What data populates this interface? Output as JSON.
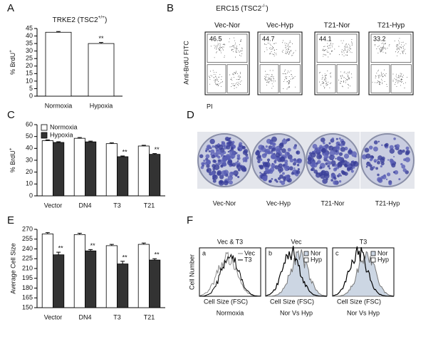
{
  "panel_letters": [
    "A",
    "B",
    "C",
    "D",
    "E",
    "F"
  ],
  "chart_data": [
    {
      "type": "bar",
      "title": [
        "TRKE2 (TSC2",
        "+/+",
        ")"
      ],
      "ylabel": [
        "% BrdU",
        "+"
      ],
      "categories": [
        "Normoxia",
        "Hypoxia"
      ],
      "values": [
        42.5,
        35
      ],
      "errors": [
        0.5,
        0.7
      ],
      "marks": [
        null,
        "**"
      ],
      "color": "#ffffff",
      "ylim": [
        0,
        45
      ],
      "yticks": [
        0,
        5,
        10,
        15,
        20,
        25,
        30,
        35,
        40,
        45
      ]
    },
    {
      "type": "bar",
      "ylabel": [
        "% BrdU",
        "+"
      ],
      "legend": "upper left",
      "categories": [
        "Vector",
        "DN4",
        "T3",
        "T21"
      ],
      "series": [
        {
          "name": "Normoxia",
          "color": "#ffffff",
          "values": [
            46.5,
            48.5,
            44,
            42
          ],
          "errors": [
            0.6,
            0.6,
            0.6,
            0.6
          ],
          "marks": [
            null,
            null,
            null,
            null
          ]
        },
        {
          "name": "Hypoxia",
          "color": "#333333",
          "values": [
            45,
            45.5,
            33,
            35
          ],
          "errors": [
            0.6,
            0.6,
            0.6,
            0.6
          ],
          "marks": [
            null,
            null,
            "**",
            "**"
          ]
        }
      ],
      "ylim": [
        0,
        60
      ],
      "yticks": [
        0,
        10,
        20,
        30,
        40,
        50,
        60
      ]
    },
    {
      "type": "bar",
      "ylabel": "Average Cell Size",
      "categories": [
        "Vector",
        "DN4",
        "T3",
        "T21"
      ],
      "series": [
        {
          "color": "#ffffff",
          "values": [
            263,
            262,
            245,
            247
          ],
          "errors": [
            2,
            2,
            2,
            2
          ],
          "marks": [
            null,
            null,
            null,
            null
          ]
        },
        {
          "color": "#333333",
          "values": [
            231,
            237,
            217,
            223
          ],
          "errors": [
            4,
            2,
            4,
            2
          ],
          "marks": [
            "**",
            "**",
            "**",
            "**"
          ]
        }
      ],
      "ylim": [
        150,
        270
      ],
      "yticks": [
        150,
        165,
        180,
        195,
        210,
        225,
        240,
        255,
        270
      ]
    }
  ],
  "flow": {
    "header": [
      "ERC15 (TSC2",
      "-/-",
      ")"
    ],
    "ylabel": "Anti-BrdU FITC",
    "xlabel": "PI",
    "plots": [
      {
        "title": "Vec-Nor",
        "value": "46.5"
      },
      {
        "title": "Vec-Hyp",
        "value": "44.7"
      },
      {
        "title": "T21-Nor",
        "value": "44.1"
      },
      {
        "title": "T21-Hyp",
        "value": "33.2"
      }
    ]
  },
  "dishes": {
    "labels": [
      "Vec-Nor",
      "Vec-Hyp",
      "T21-Nor",
      "T21-Hyp"
    ]
  },
  "histograms": {
    "ylabel": "Cell Number",
    "xlabel": "Cell Size (FSC)",
    "panels": [
      {
        "letter": "a",
        "title": "Vec & T3",
        "legend": [
          "Vec",
          "T3"
        ],
        "caption": "Normoxia"
      },
      {
        "letter": "b",
        "title": "Vec",
        "legend": [
          "Nor",
          "Hyp"
        ],
        "caption": "Nor Vs Hyp"
      },
      {
        "letter": "c",
        "title": "T3",
        "legend": [
          "Nor",
          "Hyp"
        ],
        "caption": "Nor Vs Hyp"
      }
    ]
  }
}
